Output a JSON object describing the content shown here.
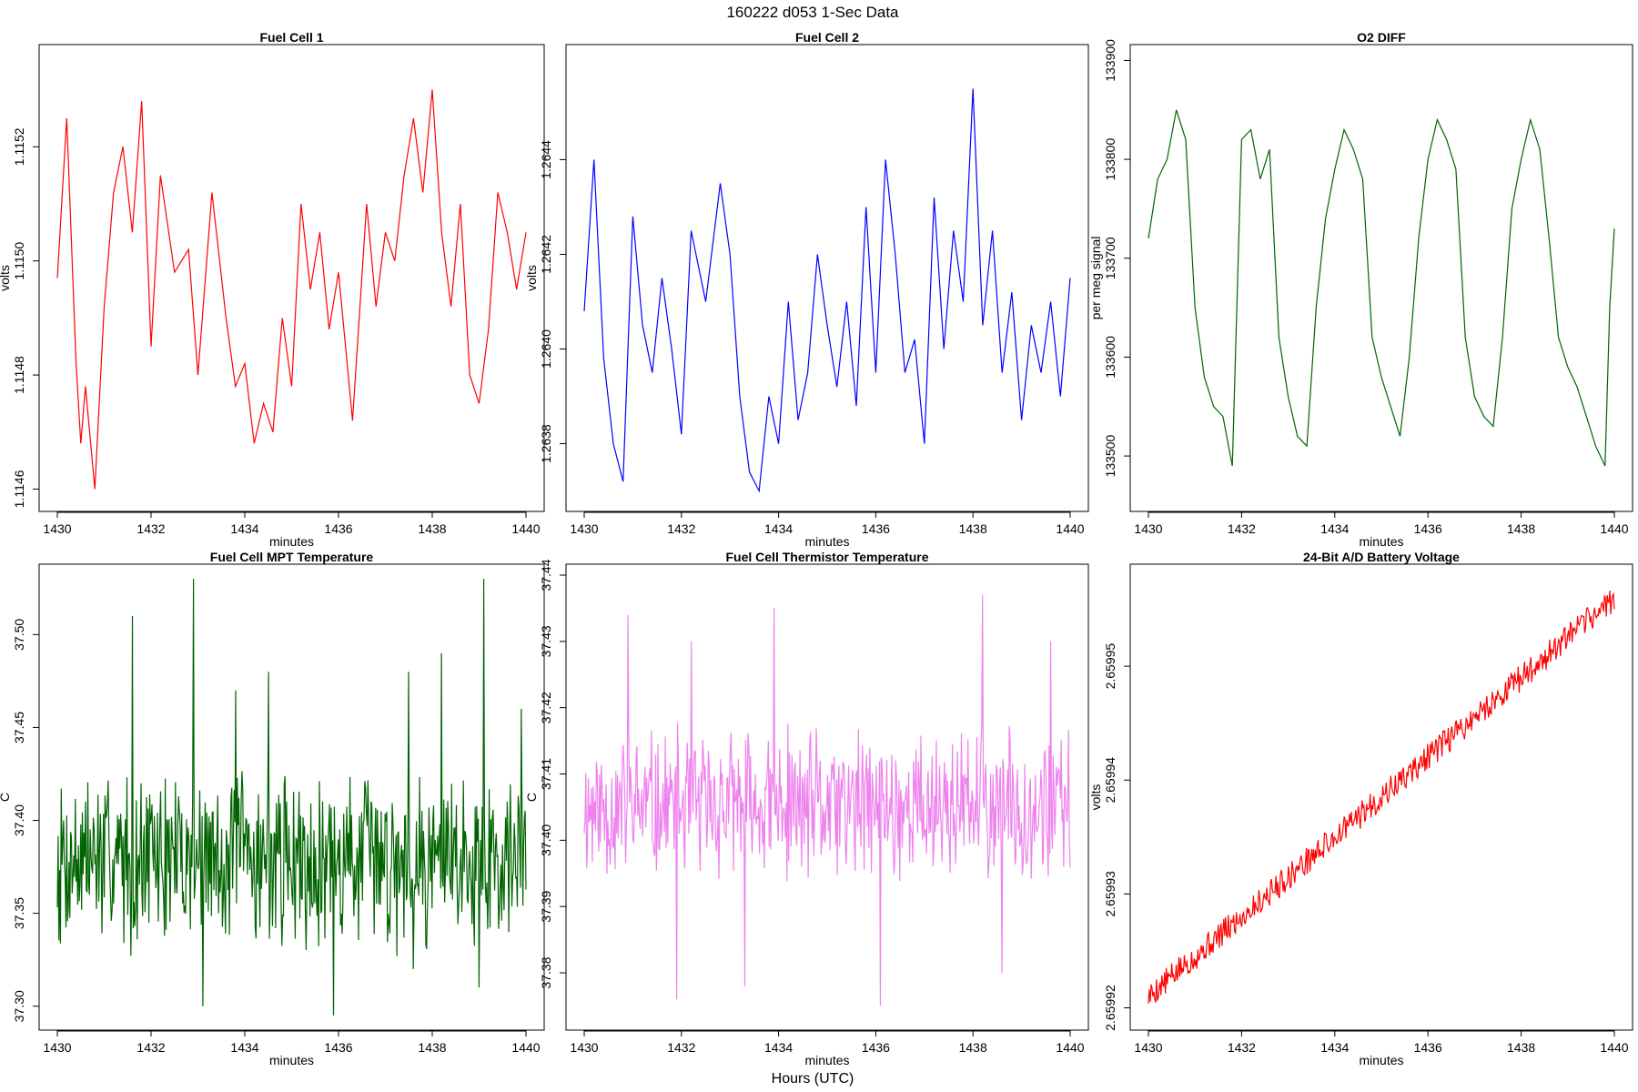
{
  "figure": {
    "suptitle": "160222   d053   1-Sec Data",
    "xlabel": "Hours (UTC)"
  },
  "chart_data": [
    {
      "type": "line",
      "title": "Fuel Cell 1",
      "xlabel": "minutes",
      "ylabel": "volts",
      "color": "#ff0000",
      "xlim": [
        1430,
        1440
      ],
      "ylim": [
        1.11458,
        1.11536
      ],
      "xticks": [
        1430,
        1432,
        1434,
        1436,
        1438,
        1440
      ],
      "yticks": [
        1.1146,
        1.1148,
        1.115,
        1.1152
      ],
      "ytick_labels": [
        "1.1146",
        "1.1148",
        "1.1150",
        "1.1152"
      ],
      "series": [
        {
          "x": [
            1430.0,
            1430.2,
            1430.4,
            1430.5,
            1430.6,
            1430.8,
            1431.0,
            1431.2,
            1431.4,
            1431.6,
            1431.8,
            1432.0,
            1432.2,
            1432.5,
            1432.8,
            1433.0,
            1433.3,
            1433.6,
            1433.8,
            1434.0,
            1434.2,
            1434.4,
            1434.6,
            1434.8,
            1435.0,
            1435.2,
            1435.4,
            1435.6,
            1435.8,
            1436.0,
            1436.3,
            1436.6,
            1436.8,
            1437.0,
            1437.2,
            1437.4,
            1437.6,
            1437.8,
            1438.0,
            1438.2,
            1438.4,
            1438.6,
            1438.8,
            1439.0,
            1439.2,
            1439.4,
            1439.6,
            1439.8,
            1440.0
          ],
          "y": [
            1.11497,
            1.11525,
            1.11482,
            1.11468,
            1.11478,
            1.1146,
            1.11492,
            1.11512,
            1.1152,
            1.11505,
            1.11528,
            1.11485,
            1.11515,
            1.11498,
            1.11502,
            1.1148,
            1.11512,
            1.1149,
            1.11478,
            1.11482,
            1.11468,
            1.11475,
            1.1147,
            1.1149,
            1.11478,
            1.1151,
            1.11495,
            1.11505,
            1.11488,
            1.11498,
            1.11472,
            1.1151,
            1.11492,
            1.11505,
            1.115,
            1.11515,
            1.11525,
            1.11512,
            1.1153,
            1.11505,
            1.11492,
            1.1151,
            1.1148,
            1.11475,
            1.11488,
            1.11512,
            1.11505,
            1.11495,
            1.11505
          ]
        }
      ]
    },
    {
      "type": "line",
      "title": "Fuel Cell 2",
      "xlabel": "minutes",
      "ylabel": "volts",
      "color": "#0000ff",
      "xlim": [
        1430,
        1440
      ],
      "ylim": [
        1.26368,
        1.26462
      ],
      "xticks": [
        1430,
        1432,
        1434,
        1436,
        1438,
        1440
      ],
      "yticks": [
        1.2638,
        1.264,
        1.2642,
        1.2644
      ],
      "ytick_labels": [
        "1.2638",
        "1.2640",
        "1.2642",
        "1.2644"
      ],
      "series": [
        {
          "x": [
            1430.0,
            1430.2,
            1430.4,
            1430.6,
            1430.8,
            1431.0,
            1431.2,
            1431.4,
            1431.6,
            1431.8,
            1432.0,
            1432.2,
            1432.5,
            1432.8,
            1433.0,
            1433.2,
            1433.4,
            1433.6,
            1433.8,
            1434.0,
            1434.2,
            1434.4,
            1434.6,
            1434.8,
            1435.0,
            1435.2,
            1435.4,
            1435.6,
            1435.8,
            1436.0,
            1436.2,
            1436.4,
            1436.6,
            1436.8,
            1437.0,
            1437.2,
            1437.4,
            1437.6,
            1437.8,
            1438.0,
            1438.2,
            1438.4,
            1438.6,
            1438.8,
            1439.0,
            1439.2,
            1439.4,
            1439.6,
            1439.8,
            1440.0
          ],
          "y": [
            1.26408,
            1.2644,
            1.26398,
            1.2638,
            1.26372,
            1.26428,
            1.26405,
            1.26395,
            1.26415,
            1.264,
            1.26382,
            1.26425,
            1.2641,
            1.26435,
            1.2642,
            1.2639,
            1.26374,
            1.2637,
            1.2639,
            1.2638,
            1.2641,
            1.26385,
            1.26395,
            1.2642,
            1.26405,
            1.26392,
            1.2641,
            1.26388,
            1.2643,
            1.26395,
            1.2644,
            1.2642,
            1.26395,
            1.26402,
            1.2638,
            1.26432,
            1.264,
            1.26425,
            1.2641,
            1.26455,
            1.26405,
            1.26425,
            1.26395,
            1.26412,
            1.26385,
            1.26405,
            1.26395,
            1.2641,
            1.2639,
            1.26415
          ]
        }
      ]
    },
    {
      "type": "line",
      "title": "O2 DIFF",
      "xlabel": "minutes",
      "ylabel": "per meg signal",
      "color": "#006400",
      "xlim": [
        1430,
        1440
      ],
      "ylim": [
        133455,
        133905
      ],
      "xticks": [
        1430,
        1432,
        1434,
        1436,
        1438,
        1440
      ],
      "yticks": [
        133500,
        133600,
        133700,
        133800,
        133900
      ],
      "ytick_labels": [
        "133500",
        "133600",
        "133700",
        "133800",
        "133900"
      ],
      "series": [
        {
          "x": [
            1430.0,
            1430.2,
            1430.4,
            1430.6,
            1430.8,
            1431.0,
            1431.2,
            1431.4,
            1431.6,
            1431.8,
            1432.0,
            1432.2,
            1432.4,
            1432.6,
            1432.8,
            1433.0,
            1433.2,
            1433.4,
            1433.6,
            1433.8,
            1434.0,
            1434.2,
            1434.4,
            1434.6,
            1434.8,
            1435.0,
            1435.2,
            1435.4,
            1435.6,
            1435.8,
            1436.0,
            1436.2,
            1436.4,
            1436.6,
            1436.8,
            1437.0,
            1437.2,
            1437.4,
            1437.6,
            1437.8,
            1438.0,
            1438.2,
            1438.4,
            1438.6,
            1438.8,
            1439.0,
            1439.2,
            1439.4,
            1439.6,
            1439.8,
            1439.9,
            1440.0
          ],
          "y": [
            133720,
            133780,
            133800,
            133850,
            133820,
            133650,
            133580,
            133550,
            133540,
            133490,
            133820,
            133830,
            133780,
            133810,
            133620,
            133560,
            133520,
            133510,
            133650,
            133740,
            133790,
            133830,
            133810,
            133780,
            133620,
            133580,
            133550,
            133520,
            133600,
            133720,
            133800,
            133840,
            133820,
            133790,
            133620,
            133560,
            133540,
            133530,
            133620,
            133750,
            133800,
            133840,
            133810,
            133720,
            133620,
            133590,
            133570,
            133540,
            133510,
            133490,
            133650,
            133730
          ]
        }
      ]
    },
    {
      "type": "line",
      "title": "Fuel Cell MPT Temperature",
      "xlabel": "minutes",
      "ylabel": "C",
      "color": "#006400",
      "xlim": [
        1430,
        1440
      ],
      "ylim": [
        37.293,
        37.532
      ],
      "xticks": [
        1430,
        1432,
        1434,
        1436,
        1438,
        1440
      ],
      "yticks": [
        37.3,
        37.35,
        37.4,
        37.45,
        37.5
      ],
      "ytick_labels": [
        "37.30",
        "37.35",
        "37.40",
        "37.45",
        "37.50"
      ],
      "noise": {
        "mean": 37.38,
        "amplitude": 0.045,
        "n": 600,
        "seed": 7
      },
      "spikes_high": [
        [
          1431.6,
          37.51
        ],
        [
          1432.9,
          37.53
        ],
        [
          1433.8,
          37.47
        ],
        [
          1434.5,
          37.48
        ],
        [
          1437.5,
          37.48
        ],
        [
          1438.2,
          37.49
        ],
        [
          1439.1,
          37.53
        ],
        [
          1439.9,
          37.46
        ]
      ],
      "spikes_low": [
        [
          1433.1,
          37.3
        ],
        [
          1435.9,
          37.295
        ],
        [
          1437.6,
          37.32
        ],
        [
          1439.0,
          37.31
        ]
      ]
    },
    {
      "type": "line",
      "title": "Fuel Cell Thermistor Temperature",
      "xlabel": "minutes",
      "ylabel": "C",
      "color": "#ee82ee",
      "xlim": [
        1430,
        1440
      ],
      "ylim": [
        37.373,
        37.44
      ],
      "xticks": [
        1430,
        1432,
        1434,
        1436,
        1438,
        1440
      ],
      "yticks": [
        37.38,
        37.39,
        37.4,
        37.41,
        37.42,
        37.43,
        37.44
      ],
      "ytick_labels": [
        "37.38",
        "37.39",
        "37.40",
        "37.41",
        "37.42",
        "37.43",
        "37.44"
      ],
      "noise": {
        "mean": 37.405,
        "amplitude": 0.011,
        "n": 600,
        "seed": 11
      },
      "spikes_high": [
        [
          1430.9,
          37.434
        ],
        [
          1432.2,
          37.43
        ],
        [
          1433.9,
          37.435
        ],
        [
          1436.1,
          37.436
        ],
        [
          1438.2,
          37.437
        ],
        [
          1439.6,
          37.43
        ]
      ],
      "spikes_low": [
        [
          1431.9,
          37.376
        ],
        [
          1433.3,
          37.378
        ],
        [
          1436.1,
          37.375
        ],
        [
          1438.6,
          37.38
        ]
      ]
    },
    {
      "type": "line",
      "title": "24-Bit A/D Battery Voltage",
      "xlabel": "minutes",
      "ylabel": "volts",
      "color": "#ff0000",
      "xlim": [
        1430,
        1440
      ],
      "ylim": [
        2.659919,
        2.659958
      ],
      "xticks": [
        1430,
        1432,
        1434,
        1436,
        1438,
        1440
      ],
      "yticks": [
        2.65992,
        2.65993,
        2.65994,
        2.65995
      ],
      "ytick_labels": [
        "2.65992",
        "2.65993",
        "2.65994",
        "2.65995"
      ],
      "trend": {
        "start": 2.659921,
        "end": 2.659956,
        "noise": 1.2e-06,
        "n": 520,
        "seed": 5
      }
    }
  ]
}
